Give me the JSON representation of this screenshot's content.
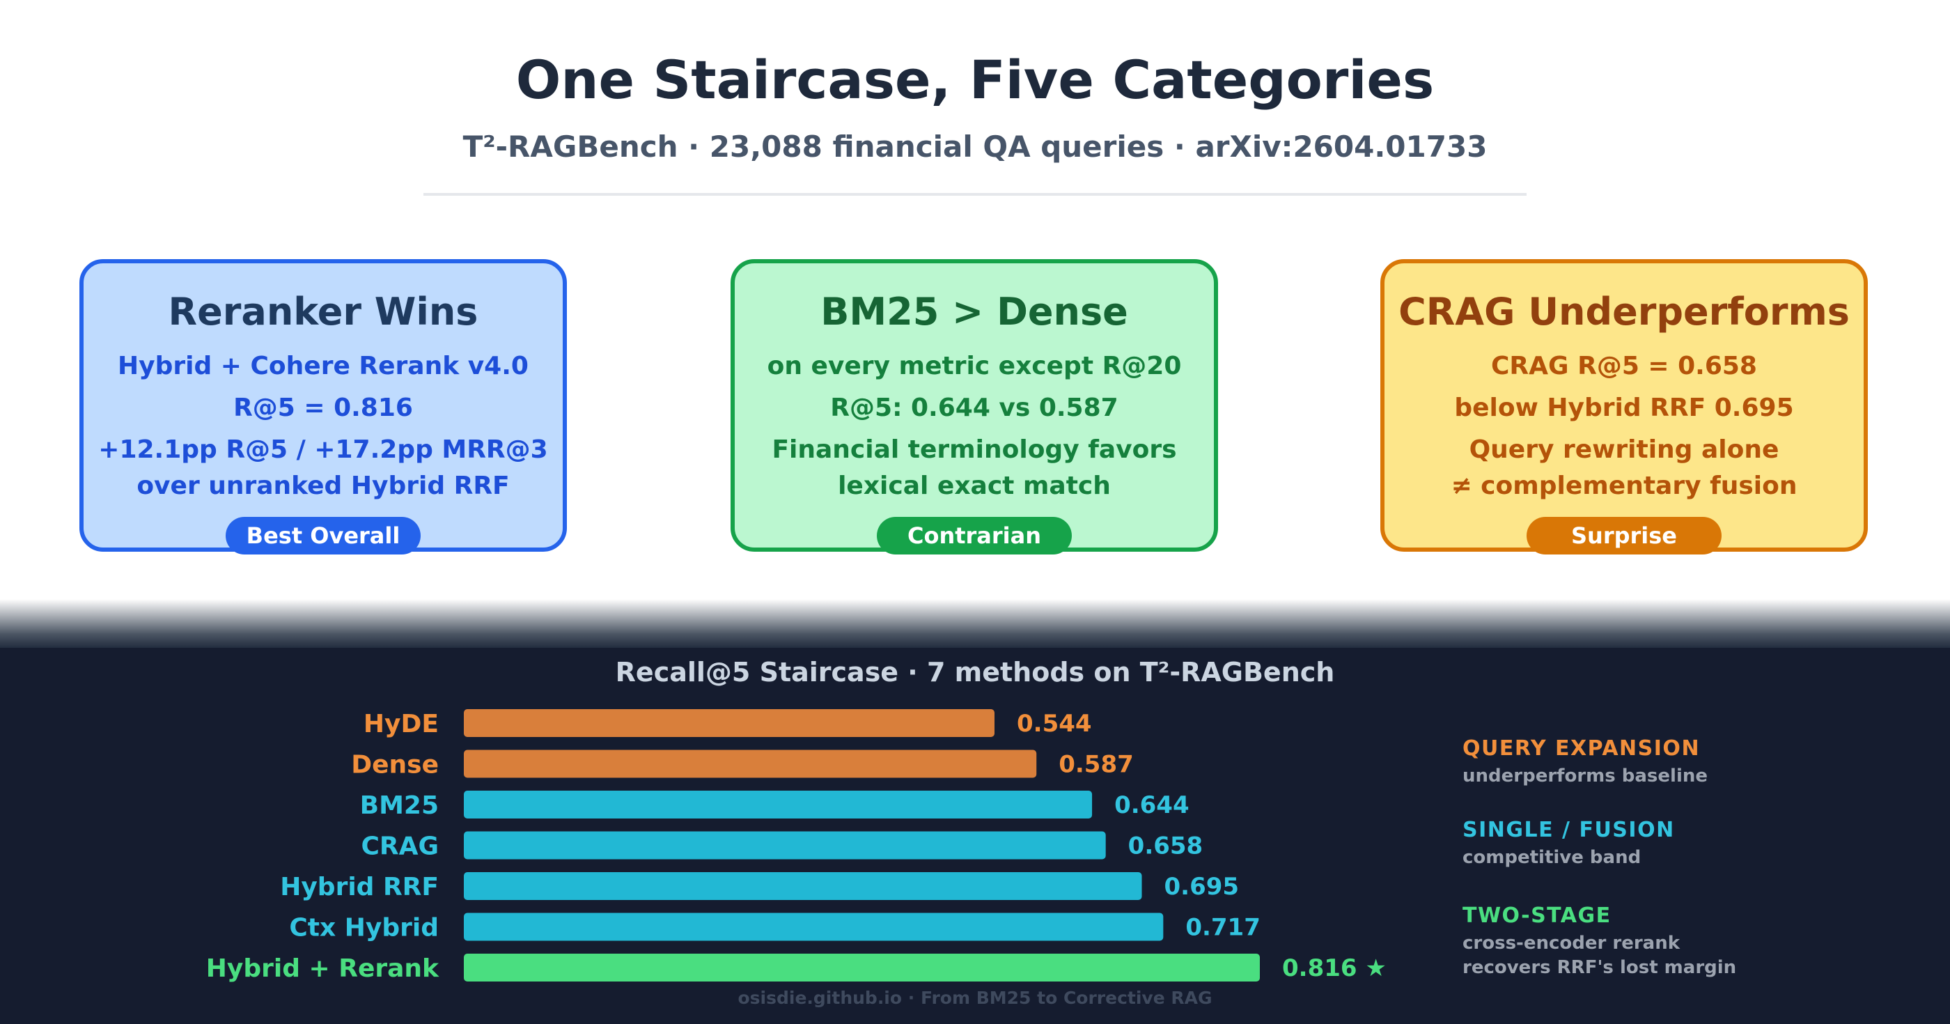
{
  "header": {
    "title": "One Staircase, Five Categories",
    "subtitle": "T²-RAGBench · 23,088 financial QA queries · arXiv:2604.01733"
  },
  "cards": [
    {
      "title": "Reranker Wins",
      "lines": [
        "Hybrid + Cohere Rerank v4.0",
        "R@5 = 0.816",
        "+12.1pp R@5 / +17.2pp MRR@3",
        "over unranked Hybrid RRF"
      ],
      "badge": "Best Overall",
      "color": "#2563eb"
    },
    {
      "title": "BM25 > Dense",
      "lines": [
        "on every metric except R@20",
        "R@5: 0.644 vs 0.587",
        "Financial terminology favors",
        "lexical exact match"
      ],
      "badge": "Contrarian",
      "color": "#16a34a"
    },
    {
      "title": "CRAG Underperforms",
      "lines": [
        "CRAG R@5 = 0.658",
        "below Hybrid RRF 0.695",
        "Query rewriting alone",
        "≠ complementary fusion"
      ],
      "badge": "Surprise",
      "color": "#d97706"
    }
  ],
  "chart_data": {
    "type": "bar",
    "orientation": "horizontal",
    "title": "Recall@5 Staircase · 7 methods on T²-RAGBench",
    "categories": [
      "HyDE",
      "Dense",
      "BM25",
      "CRAG",
      "Hybrid RRF",
      "Ctx Hybrid",
      "Hybrid + Rerank"
    ],
    "values": [
      0.544,
      0.587,
      0.644,
      0.658,
      0.695,
      0.717,
      0.816
    ],
    "value_labels": [
      "0.544",
      "0.587",
      "0.644",
      "0.658",
      "0.695",
      "0.717",
      "0.816 ★"
    ],
    "groups": [
      "query-expansion",
      "query-expansion",
      "single-fusion",
      "single-fusion",
      "single-fusion",
      "single-fusion",
      "two-stage"
    ],
    "xlim": [
      0,
      0.816
    ],
    "grid": false,
    "legend": "right",
    "colors": {
      "query-expansion": "#d97f3b",
      "query-expansion-text": "#f28f3b",
      "single-fusion": "#22b8d4",
      "single-fusion-text": "#33c4e0",
      "two-stage": "#4ade80"
    },
    "annotations": [
      {
        "group": "query-expansion",
        "heading": "QUERY EXPANSION",
        "lines": [
          "underperforms baseline"
        ]
      },
      {
        "group": "single-fusion",
        "heading": "SINGLE / FUSION",
        "lines": [
          "competitive band"
        ]
      },
      {
        "group": "two-stage",
        "heading": "TWO-STAGE",
        "lines": [
          "cross-encoder rerank",
          "recovers RRF's lost margin"
        ]
      }
    ]
  },
  "footer": "osisdie.github.io · From BM25 to Corrective RAG"
}
